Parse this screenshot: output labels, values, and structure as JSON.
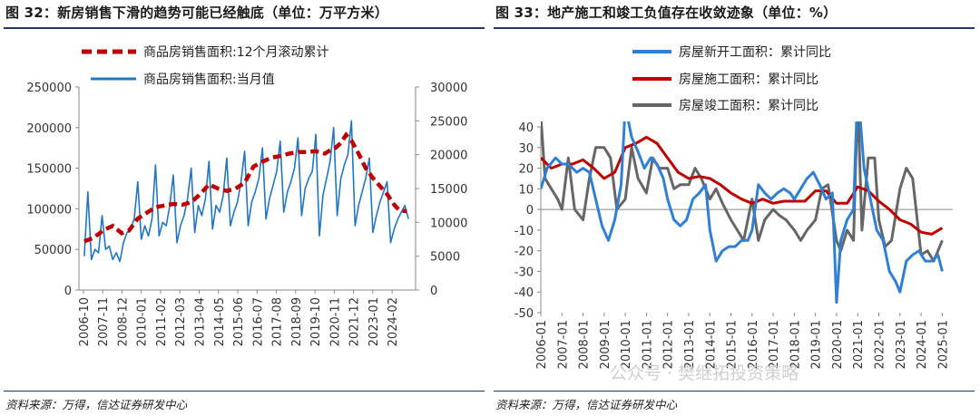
{
  "left": {
    "title": "图 32：新房销售下滑的趋势可能已经触底（单位：万平方米）",
    "source": "资料来源：万得，信达证券研发中心",
    "chart_data": {
      "type": "line",
      "x_labels": [
        "2006-10",
        "2007-11",
        "2008-12",
        "2010-01",
        "2011-02",
        "2012-03",
        "2013-04",
        "2014-05",
        "2015-06",
        "2016-07",
        "2017-08",
        "2018-09",
        "2019-10",
        "2020-11",
        "2021-12",
        "2023-01",
        "2024-02"
      ],
      "left_axis": {
        "min": 0,
        "max": 250000,
        "ticks": [
          "250000",
          "200000",
          "150000",
          "100000",
          "50000",
          "0"
        ]
      },
      "right_axis": {
        "min": 0,
        "max": 30000,
        "ticks": [
          "30000",
          "25000",
          "20000",
          "15000",
          "10000",
          "5000",
          "0"
        ]
      },
      "series": [
        {
          "name": "商品房销售面积:12个月滚动累计",
          "axis": "left",
          "color": "#c00000",
          "style": "dashed",
          "x": [
            2006.8,
            2007.3,
            2007.9,
            2008.4,
            2008.9,
            2009.3,
            2009.8,
            2010.3,
            2010.8,
            2011.3,
            2011.8,
            2012.3,
            2012.8,
            2013.3,
            2013.8,
            2014.3,
            2014.8,
            2015.3,
            2015.8,
            2016.3,
            2016.8,
            2017.3,
            2017.8,
            2018.3,
            2018.8,
            2019.3,
            2019.8,
            2020.3,
            2020.6,
            2020.9,
            2021.2,
            2021.5,
            2021.8,
            2022.2,
            2022.6,
            2023.0,
            2023.4,
            2023.8,
            2024.2,
            2024.5,
            2024.9
          ],
          "y": [
            60000,
            64000,
            74000,
            79000,
            70000,
            73000,
            88000,
            95000,
            102000,
            104000,
            106000,
            105000,
            108000,
            118000,
            130000,
            125000,
            122000,
            125000,
            132000,
            152000,
            158000,
            163000,
            165000,
            168000,
            170000,
            170000,
            171000,
            168000,
            172000,
            175000,
            181000,
            191000,
            184000,
            168000,
            150000,
            138000,
            128000,
            118000,
            105000,
            98000,
            97000
          ]
        },
        {
          "name": "商品房销售面积:当月值",
          "axis": "right",
          "color": "#1f77c4",
          "style": "solid",
          "x": [
            2006.8,
            2007.0,
            2007.2,
            2007.4,
            2007.6,
            2007.8,
            2008.0,
            2008.2,
            2008.4,
            2008.6,
            2008.8,
            2009.0,
            2009.2,
            2009.4,
            2009.6,
            2009.8,
            2010.0,
            2010.2,
            2010.4,
            2010.6,
            2010.8,
            2011.0,
            2011.2,
            2011.4,
            2011.6,
            2011.8,
            2012.0,
            2012.2,
            2012.4,
            2012.6,
            2012.8,
            2013.0,
            2013.2,
            2013.4,
            2013.6,
            2013.8,
            2014.0,
            2014.2,
            2014.4,
            2014.6,
            2014.8,
            2015.0,
            2015.2,
            2015.4,
            2015.6,
            2015.8,
            2016.0,
            2016.2,
            2016.4,
            2016.6,
            2016.8,
            2017.0,
            2017.2,
            2017.4,
            2017.6,
            2017.8,
            2018.0,
            2018.2,
            2018.4,
            2018.6,
            2018.8,
            2019.0,
            2019.2,
            2019.4,
            2019.6,
            2019.8,
            2020.0,
            2020.2,
            2020.4,
            2020.6,
            2020.8,
            2021.0,
            2021.2,
            2021.4,
            2021.6,
            2021.8,
            2022.0,
            2022.2,
            2022.4,
            2022.6,
            2022.8,
            2023.0,
            2023.2,
            2023.4,
            2023.6,
            2023.8,
            2024.0,
            2024.2,
            2024.4,
            2024.6,
            2024.8,
            2025.0
          ],
          "y": [
            5000,
            14500,
            4500,
            6000,
            5500,
            11000,
            6000,
            6500,
            4500,
            5500,
            4200,
            7000,
            8500,
            9000,
            10500,
            16000,
            7500,
            9500,
            8000,
            10500,
            18500,
            8000,
            10000,
            9500,
            12500,
            17000,
            7000,
            9500,
            11000,
            13500,
            18000,
            8500,
            12500,
            11000,
            13500,
            19000,
            9000,
            12500,
            11500,
            14000,
            19500,
            9500,
            11500,
            13000,
            16000,
            20500,
            9500,
            13000,
            14500,
            16500,
            21000,
            10500,
            13500,
            15500,
            17500,
            22000,
            11500,
            14500,
            16000,
            18000,
            22500,
            11000,
            15000,
            16500,
            17500,
            23000,
            8000,
            14000,
            16500,
            19000,
            24000,
            11000,
            16500,
            18500,
            20000,
            25000,
            9500,
            12500,
            14500,
            16500,
            19500,
            8500,
            11000,
            13000,
            14500,
            16000,
            7000,
            9000,
            10500,
            11500,
            12500,
            10500
          ]
        }
      ]
    }
  },
  "right": {
    "title": "图 33：地产施工和竣工负值存在收敛迹象（单位：%）",
    "source": "资料来源：万得，信达证券研发中心",
    "watermark": "公众号 · 樊继拓投资策略",
    "chart_data": {
      "type": "line",
      "x_labels": [
        "2006-01",
        "2007-01",
        "2008-01",
        "2009-01",
        "2010-01",
        "2011-01",
        "2012-01",
        "2013-01",
        "2014-01",
        "2015-01",
        "2016-01",
        "2017-01",
        "2018-01",
        "2019-01",
        "2020-01",
        "2021-01",
        "2022-01",
        "2023-01",
        "2024-01",
        "2025-01"
      ],
      "y_axis": {
        "min": -50,
        "max": 40,
        "ticks": [
          "40",
          "30",
          "20",
          "10",
          "0",
          "-10",
          "-20",
          "-30",
          "-40",
          "-50"
        ]
      },
      "series": [
        {
          "name": "房屋新开工面积：累计同比",
          "color": "#2f7fd6",
          "x": [
            2006.0,
            2006.3,
            2006.7,
            2007.0,
            2007.3,
            2007.7,
            2008.0,
            2008.3,
            2008.6,
            2008.9,
            2009.2,
            2009.5,
            2009.8,
            2010.0,
            2010.3,
            2010.6,
            2010.9,
            2011.2,
            2011.5,
            2011.8,
            2012.0,
            2012.3,
            2012.6,
            2012.9,
            2013.2,
            2013.5,
            2013.8,
            2014.0,
            2014.3,
            2014.6,
            2014.9,
            2015.2,
            2015.5,
            2015.8,
            2016.0,
            2016.3,
            2016.6,
            2016.9,
            2017.2,
            2017.5,
            2017.8,
            2018.0,
            2018.3,
            2018.6,
            2018.9,
            2019.2,
            2019.5,
            2019.8,
            2020.0,
            2020.2,
            2020.5,
            2020.8,
            2021.0,
            2021.3,
            2021.6,
            2021.9,
            2022.2,
            2022.5,
            2022.8,
            2023.0,
            2023.3,
            2023.6,
            2023.9,
            2024.2,
            2024.5,
            2024.8,
            2025.0
          ],
          "y": [
            10,
            20,
            25,
            22,
            22,
            18,
            20,
            18,
            5,
            -8,
            -15,
            -5,
            12,
            50,
            35,
            28,
            20,
            25,
            22,
            15,
            5,
            -5,
            -8,
            -5,
            5,
            8,
            12,
            -10,
            -25,
            -20,
            -18,
            -18,
            -15,
            -15,
            -10,
            12,
            8,
            5,
            8,
            10,
            8,
            5,
            10,
            15,
            18,
            12,
            5,
            8,
            -45,
            -15,
            -5,
            0,
            60,
            20,
            5,
            -10,
            -15,
            -30,
            -35,
            -40,
            -25,
            -22,
            -20,
            -25,
            -25,
            -22,
            -30
          ]
        },
        {
          "name": "房屋施工面积：累计同比",
          "color": "#c00000",
          "x": [
            2006.0,
            2006.5,
            2007.0,
            2007.5,
            2008.0,
            2008.5,
            2009.0,
            2009.5,
            2010.0,
            2010.5,
            2011.0,
            2011.5,
            2012.0,
            2012.5,
            2013.0,
            2013.5,
            2014.0,
            2014.5,
            2015.0,
            2015.5,
            2016.0,
            2016.5,
            2017.0,
            2017.5,
            2018.0,
            2018.5,
            2019.0,
            2019.5,
            2020.0,
            2020.5,
            2021.0,
            2021.5,
            2022.0,
            2022.5,
            2023.0,
            2023.5,
            2024.0,
            2024.5,
            2025.0
          ],
          "y": [
            25,
            20,
            22,
            22,
            24,
            20,
            15,
            18,
            30,
            32,
            35,
            32,
            25,
            18,
            15,
            16,
            15,
            12,
            8,
            5,
            3,
            5,
            3,
            4,
            4,
            4,
            9,
            9,
            3,
            3,
            11,
            9,
            4,
            0,
            -5,
            -7,
            -11,
            -12,
            -9
          ]
        },
        {
          "name": "房屋竣工面积：累计同比",
          "color": "#666666",
          "x": [
            2006.0,
            2006.2,
            2006.5,
            2006.8,
            2007.0,
            2007.3,
            2007.6,
            2008.0,
            2008.3,
            2008.6,
            2009.0,
            2009.3,
            2009.6,
            2010.0,
            2010.3,
            2010.6,
            2011.0,
            2011.3,
            2011.6,
            2012.0,
            2012.3,
            2012.6,
            2013.0,
            2013.3,
            2013.6,
            2014.0,
            2014.3,
            2014.6,
            2015.0,
            2015.3,
            2015.6,
            2016.0,
            2016.3,
            2016.6,
            2017.0,
            2017.3,
            2017.6,
            2018.0,
            2018.3,
            2018.6,
            2019.0,
            2019.3,
            2019.6,
            2020.0,
            2020.2,
            2020.5,
            2020.8,
            2021.0,
            2021.2,
            2021.5,
            2021.8,
            2022.0,
            2022.3,
            2022.6,
            2023.0,
            2023.3,
            2023.6,
            2024.0,
            2024.3,
            2024.6,
            2025.0
          ],
          "y": [
            45,
            15,
            10,
            5,
            0,
            25,
            0,
            -5,
            15,
            30,
            30,
            25,
            0,
            5,
            30,
            15,
            8,
            25,
            20,
            20,
            10,
            12,
            12,
            20,
            15,
            5,
            10,
            3,
            -5,
            -10,
            -15,
            5,
            -15,
            -5,
            0,
            -3,
            -5,
            -10,
            -15,
            -10,
            -5,
            10,
            12,
            -15,
            -20,
            -10,
            -15,
            55,
            -10,
            25,
            25,
            -5,
            -18,
            -15,
            10,
            20,
            15,
            -22,
            -20,
            -25,
            -15
          ]
        }
      ]
    }
  }
}
